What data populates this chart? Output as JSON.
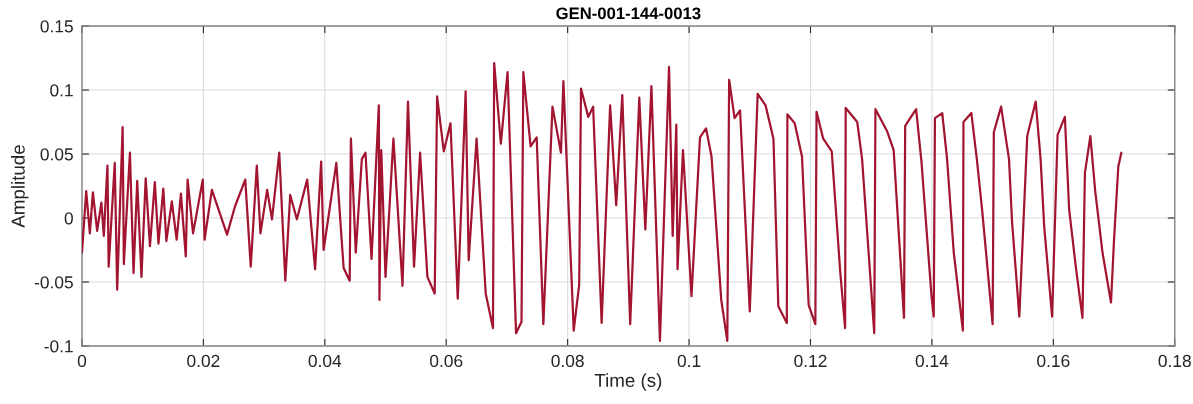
{
  "chart_data": {
    "type": "line",
    "title": "GEN-001-144-0013",
    "xlabel": "Time (s)",
    "ylabel": "Amplitude",
    "xlim": [
      0,
      0.18
    ],
    "xticks": [
      0,
      0.02,
      0.04,
      0.06,
      0.08,
      0.1,
      0.12,
      0.14,
      0.16,
      0.18
    ],
    "ylim": [
      -0.1,
      0.15
    ],
    "yticks": [
      -0.1,
      -0.05,
      0,
      0.05,
      0.1,
      0.15
    ],
    "grid": true,
    "series": [
      {
        "color": "#a2142f",
        "x": [
          0.0,
          0.0007,
          0.0013,
          0.0018,
          0.0025,
          0.0032,
          0.0036,
          0.0042,
          0.0044,
          0.0054,
          0.0058,
          0.0067,
          0.0069,
          0.0079,
          0.0085,
          0.0091,
          0.0098,
          0.0105,
          0.0112,
          0.012,
          0.0126,
          0.0134,
          0.0139,
          0.0148,
          0.0156,
          0.0163,
          0.0171,
          0.0174,
          0.0183,
          0.0199,
          0.0202,
          0.0214,
          0.0239,
          0.0252,
          0.0269,
          0.0278,
          0.0288,
          0.0294,
          0.0305,
          0.0313,
          0.0325,
          0.0335,
          0.0343,
          0.0354,
          0.0371,
          0.0384,
          0.0394,
          0.0398,
          0.0419,
          0.0431,
          0.0441,
          0.0443,
          0.0451,
          0.0461,
          0.0467,
          0.0477,
          0.0489,
          0.049,
          0.0493,
          0.05,
          0.0513,
          0.0528,
          0.0537,
          0.0547,
          0.0557,
          0.0569,
          0.0581,
          0.0585,
          0.0596,
          0.0607,
          0.0619,
          0.0632,
          0.0637,
          0.065,
          0.0665,
          0.0677,
          0.0679,
          0.069,
          0.0701,
          0.0715,
          0.0724,
          0.0727,
          0.0739,
          0.0749,
          0.076,
          0.0775,
          0.0789,
          0.0793,
          0.081,
          0.0819,
          0.0822,
          0.0834,
          0.0842,
          0.0856,
          0.087,
          0.088,
          0.089,
          0.0903,
          0.0918,
          0.0928,
          0.0938,
          0.0952,
          0.0967,
          0.0973,
          0.0979,
          0.0981,
          0.099,
          0.1004,
          0.1018,
          0.1028,
          0.1037,
          0.1053,
          0.1063,
          0.1066,
          0.1075,
          0.1084,
          0.11,
          0.1113,
          0.1126,
          0.1139,
          0.1147,
          0.1161,
          0.1162,
          0.1174,
          0.1186,
          0.1197,
          0.1208,
          0.121,
          0.1221,
          0.1235,
          0.1249,
          0.1257,
          0.1258,
          0.1277,
          0.1285,
          0.1305,
          0.1307,
          0.1326,
          0.1337,
          0.1354,
          0.1356,
          0.1374,
          0.1383,
          0.1399,
          0.1403,
          0.1405,
          0.1417,
          0.1425,
          0.1436,
          0.1451,
          0.1452,
          0.1465,
          0.1474,
          0.1483,
          0.15,
          0.1502,
          0.1514,
          0.1527,
          0.1532,
          0.1544,
          0.1557,
          0.1571,
          0.1579,
          0.1585,
          0.1598,
          0.1607,
          0.1619,
          0.1626,
          0.1637,
          0.1648,
          0.1652,
          0.1661,
          0.1669,
          0.1681,
          0.1695,
          0.17,
          0.1707,
          0.1712
        ],
        "values": [
          -0.027,
          0.021,
          -0.012,
          0.02,
          -0.01,
          0.012,
          -0.014,
          0.041,
          -0.038,
          0.043,
          -0.056,
          0.071,
          -0.036,
          0.051,
          -0.043,
          0.029,
          -0.046,
          0.031,
          -0.022,
          0.028,
          -0.02,
          0.023,
          -0.018,
          0.013,
          -0.017,
          0.019,
          -0.03,
          0.03,
          -0.012,
          0.03,
          -0.017,
          0.022,
          -0.013,
          0.009,
          0.03,
          -0.038,
          0.041,
          -0.012,
          0.022,
          -0.001,
          0.051,
          -0.049,
          0.018,
          -0.001,
          0.03,
          -0.04,
          0.044,
          -0.025,
          0.043,
          -0.039,
          -0.049,
          0.062,
          -0.027,
          0.046,
          0.051,
          -0.032,
          0.088,
          -0.064,
          0.053,
          -0.046,
          0.062,
          -0.053,
          0.091,
          -0.038,
          0.051,
          -0.046,
          -0.059,
          0.095,
          0.052,
          0.074,
          -0.063,
          0.099,
          -0.033,
          0.062,
          -0.059,
          -0.086,
          0.121,
          0.058,
          0.114,
          -0.09,
          -0.081,
          0.114,
          0.056,
          0.063,
          -0.083,
          0.087,
          0.051,
          0.107,
          -0.088,
          -0.052,
          0.101,
          0.079,
          0.087,
          -0.082,
          0.088,
          0.01,
          0.096,
          -0.083,
          0.094,
          -0.009,
          0.103,
          -0.096,
          0.118,
          -0.014,
          0.073,
          -0.04,
          0.053,
          -0.061,
          0.063,
          0.07,
          0.048,
          -0.064,
          -0.096,
          0.108,
          0.078,
          0.084,
          -0.073,
          0.097,
          0.088,
          0.062,
          -0.069,
          -0.082,
          0.081,
          0.074,
          0.048,
          -0.068,
          -0.083,
          0.083,
          0.062,
          0.052,
          -0.042,
          -0.086,
          0.086,
          0.075,
          0.046,
          -0.09,
          0.085,
          0.068,
          0.053,
          -0.078,
          0.072,
          0.085,
          0.043,
          -0.059,
          -0.077,
          0.078,
          0.082,
          0.046,
          -0.027,
          -0.088,
          0.075,
          0.082,
          0.046,
          0.005,
          -0.083,
          0.067,
          0.087,
          0.046,
          -0.003,
          -0.077,
          0.064,
          0.091,
          0.046,
          -0.007,
          -0.077,
          0.065,
          0.079,
          0.007,
          -0.038,
          -0.078,
          0.035,
          0.064,
          0.021,
          -0.027,
          -0.066,
          -0.017,
          0.04,
          0.051
        ]
      }
    ]
  }
}
